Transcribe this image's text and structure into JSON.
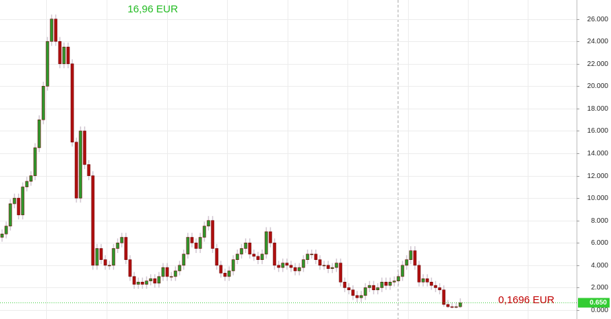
{
  "chart_data": {
    "type": "candlestick",
    "annotations": [
      {
        "text": "16,96 EUR",
        "color": "#22bb22"
      },
      {
        "text": "0,1696 EUR",
        "color": "#c00000"
      }
    ],
    "last_price": {
      "value": 0.65,
      "label": "0.650",
      "color": "#33cc33"
    },
    "up_color": "#2e9b2e",
    "down_color": "#b01010",
    "grid": true,
    "ylim": [
      -0.8,
      27.7
    ],
    "yticks": [
      {
        "value": 0,
        "label": "0.000"
      },
      {
        "value": 2,
        "label": "2.000"
      },
      {
        "value": 4,
        "label": "4.000"
      },
      {
        "value": 6,
        "label": "6.000"
      },
      {
        "value": 8,
        "label": "8.000"
      },
      {
        "value": 10,
        "label": "10.000"
      },
      {
        "value": 12,
        "label": "12.000"
      },
      {
        "value": 14,
        "label": "14.000"
      },
      {
        "value": 16,
        "label": "16.000"
      },
      {
        "value": 18,
        "label": "18.000"
      },
      {
        "value": 20,
        "label": "20.000"
      },
      {
        "value": 22,
        "label": "22.000"
      },
      {
        "value": 24,
        "label": "24.000"
      },
      {
        "value": 26,
        "label": "26.000"
      }
    ],
    "series": {
      "open": [
        6.5,
        6.8,
        7.5,
        9.5,
        10,
        8.5,
        11,
        11.5,
        12,
        14.5,
        17,
        20,
        24,
        26,
        24,
        22,
        23.5,
        22,
        15,
        10,
        16,
        13,
        12,
        4,
        5.5,
        4.5,
        4,
        4,
        5.5,
        6,
        6.5,
        4.5,
        3,
        2.3,
        2.5,
        2.3,
        2.6,
        2.8,
        2.4,
        3,
        3.8,
        3,
        3,
        3.5,
        4,
        5,
        6.5,
        6,
        5.5,
        6.5,
        7.5,
        8,
        5.5,
        4,
        3.3,
        3,
        3.5,
        4.5,
        5,
        5.5,
        6,
        5,
        4.8,
        4.5,
        5,
        7,
        6,
        4,
        3.8,
        4.2,
        4,
        3.8,
        3.5,
        3.8,
        4.5,
        5,
        5,
        4.5,
        4,
        4,
        3.7,
        3.8,
        4.2,
        2.5,
        2,
        1.8,
        1.3,
        1.1,
        1.3,
        2,
        2.2,
        1.8,
        2,
        2.5,
        2.2,
        2.5,
        2.6,
        3,
        4,
        4.5,
        5.3,
        4,
        2.5,
        2.8,
        2.5,
        2.2,
        2,
        1.8,
        0.5,
        0.3,
        0.25,
        0.3
      ],
      "high": [
        7.2,
        7.9,
        9.9,
        10.4,
        10.4,
        11.4,
        11.9,
        12.4,
        14.9,
        17.4,
        20.4,
        24.4,
        26.4,
        26.4,
        24.4,
        23.9,
        23.9,
        22.4,
        15.4,
        16.4,
        16.4,
        13.4,
        12.4,
        5.9,
        5.9,
        4.9,
        4.4,
        5.9,
        6.4,
        6.9,
        6.9,
        4.9,
        3.4,
        2.9,
        2.9,
        3,
        3.2,
        3.2,
        3.4,
        4.2,
        4.2,
        3.4,
        3.9,
        4.4,
        5.4,
        6.9,
        6.9,
        6.4,
        6.9,
        7.9,
        8.4,
        8.4,
        5.9,
        4.4,
        3.7,
        3.9,
        4.9,
        5.4,
        5.9,
        6.4,
        6.4,
        5.4,
        5.2,
        5.4,
        7.4,
        7.4,
        6.4,
        4.4,
        4.6,
        4.6,
        4.4,
        4.2,
        4.2,
        4.9,
        5.4,
        5.4,
        5.4,
        4.9,
        4.4,
        4.4,
        4.2,
        4.6,
        4.6,
        2.9,
        2.4,
        2.2,
        1.7,
        1.7,
        2.4,
        2.6,
        2.6,
        2.4,
        2.9,
        2.9,
        2.9,
        3,
        3.4,
        4.4,
        4.9,
        5.7,
        5.7,
        4.4,
        3.2,
        3.2,
        2.9,
        2.6,
        2.4,
        2.2,
        0.9,
        0.7,
        0.7,
        1.05
      ],
      "low": [
        6.1,
        6.4,
        7.1,
        9.1,
        8.1,
        8.1,
        10.6,
        11.1,
        11.6,
        14.1,
        16.6,
        19.6,
        23.6,
        23.6,
        21.6,
        21.6,
        21.6,
        14.6,
        9.6,
        9.6,
        12.6,
        11.6,
        3.6,
        3.6,
        4.1,
        3.6,
        3.6,
        3.6,
        5.1,
        5.6,
        4.1,
        2.6,
        1.9,
        1.9,
        1.9,
        1.9,
        2.2,
        2,
        2,
        2.6,
        2.6,
        2.6,
        2.6,
        3.1,
        3.6,
        4.6,
        5.6,
        5.1,
        5.1,
        6.1,
        7.1,
        5.1,
        3.6,
        2.9,
        2.6,
        2.6,
        3.1,
        4.1,
        4.6,
        5.1,
        4.6,
        4.4,
        4.1,
        4.1,
        4.6,
        5.6,
        3.6,
        3.4,
        3.4,
        3.6,
        3.4,
        3.1,
        3.1,
        3.4,
        4.1,
        4.6,
        4.1,
        3.6,
        3.6,
        3.3,
        3.3,
        3.4,
        2.1,
        1.6,
        1.4,
        0.9,
        0.7,
        0.7,
        0.9,
        1.6,
        1.4,
        1.4,
        1.6,
        1.8,
        1.8,
        2.1,
        2.2,
        2.6,
        3.6,
        4.1,
        3.6,
        2.1,
        2.1,
        2.1,
        1.8,
        1.6,
        1.4,
        0.3,
        0.2,
        0.15,
        0.15,
        0.2
      ],
      "close": [
        6.8,
        7.5,
        9.5,
        10,
        8.5,
        11,
        11.5,
        12,
        14.5,
        17,
        20,
        24,
        26,
        24,
        22,
        23.5,
        22,
        15,
        10,
        16,
        13,
        12,
        4,
        5.5,
        4.5,
        4,
        4,
        5.5,
        6,
        6.5,
        4.5,
        3,
        2.3,
        2.5,
        2.3,
        2.6,
        2.8,
        2.4,
        3,
        3.8,
        3,
        3,
        3.5,
        4,
        5,
        6.5,
        6,
        5.5,
        6.5,
        7.5,
        8,
        5.5,
        4,
        3.3,
        3,
        3.5,
        4.5,
        5,
        5.5,
        6,
        5,
        4.8,
        4.5,
        5,
        7,
        6,
        4,
        3.8,
        4.2,
        4,
        3.8,
        3.5,
        3.8,
        4.5,
        5,
        5,
        4.5,
        4,
        4,
        3.7,
        3.8,
        4.2,
        2.5,
        2,
        1.8,
        1.3,
        1.1,
        1.3,
        2,
        2.2,
        1.8,
        2,
        2.5,
        2.2,
        2.5,
        2.6,
        3,
        4,
        4.5,
        5.3,
        4,
        2.5,
        2.8,
        2.5,
        2.2,
        2,
        1.8,
        0.5,
        0.3,
        0.25,
        0.3,
        0.65
      ]
    }
  }
}
